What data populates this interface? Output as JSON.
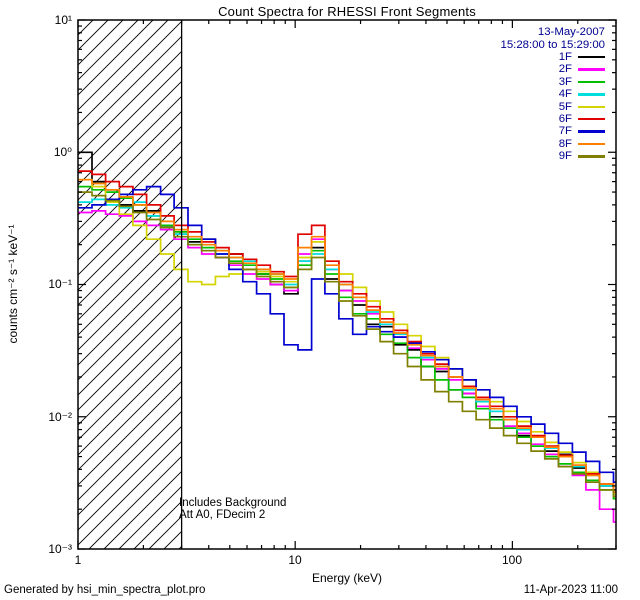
{
  "title": "Count Spectra for RHESSI Front Segments",
  "header": {
    "date": "13-May-2007",
    "time_range": "15:28:00 to 15:29:00"
  },
  "annotations": {
    "line1": "Includes Background",
    "line2": "Att A0, FDecim 2"
  },
  "footer": {
    "left": "Generated by hsi_min_spectra_plot.pro",
    "right": "11-Apr-2023 11:00"
  },
  "axes": {
    "xlabel": "Energy (keV)",
    "ylabel": "counts cm⁻² s⁻¹ keV⁻¹",
    "x_ticks": [
      "1",
      "10",
      "100"
    ],
    "y_ticks": [
      "10¹",
      "10⁰",
      "10⁻¹",
      "10⁻²",
      "10⁻³"
    ]
  },
  "chart_data": {
    "type": "line",
    "title": "Count Spectra for RHESSI Front Segments",
    "xlabel": "Energy (keV)",
    "ylabel": "counts cm^-2 s^-1 keV^-1",
    "xscale": "log",
    "yscale": "log",
    "xlim": [
      1,
      300
    ],
    "ylim": [
      0.001,
      10
    ],
    "grid": false,
    "legend_position": "top-right",
    "step_mode": true,
    "hatched_region_kev": [
      1,
      3
    ],
    "energies_kev": [
      1.0,
      1.16,
      1.34,
      1.55,
      1.79,
      2.07,
      2.4,
      2.77,
      3.21,
      3.71,
      4.29,
      4.96,
      5.74,
      6.64,
      7.68,
      8.88,
      10.3,
      11.9,
      13.7,
      15.9,
      18.4,
      21.3,
      24.6,
      28.4,
      32.9,
      38.0,
      44.0,
      50.9,
      58.9,
      68.1,
      78.7,
      91.1,
      105,
      122,
      141,
      163,
      189,
      218,
      252,
      292
    ],
    "series": [
      {
        "name": "1F",
        "color": "#000000",
        "values": [
          1.0,
          0.6,
          0.52,
          0.4,
          0.36,
          0.36,
          0.28,
          0.24,
          0.21,
          0.22,
          0.16,
          0.17,
          0.13,
          0.12,
          0.1,
          0.085,
          0.15,
          0.19,
          0.11,
          0.09,
          0.07,
          0.05,
          0.048,
          0.035,
          0.032,
          0.024,
          0.022,
          0.016,
          0.015,
          0.013,
          0.01,
          0.0095,
          0.0072,
          0.007,
          0.0055,
          0.0052,
          0.0041,
          0.0038,
          0.003,
          0.0028
        ]
      },
      {
        "name": "2F",
        "color": "#ff00ff",
        "values": [
          0.35,
          0.36,
          0.34,
          0.33,
          0.3,
          0.28,
          0.26,
          0.22,
          0.19,
          0.17,
          0.16,
          0.14,
          0.12,
          0.11,
          0.1,
          0.09,
          0.17,
          0.22,
          0.13,
          0.09,
          0.075,
          0.06,
          0.05,
          0.04,
          0.033,
          0.027,
          0.023,
          0.019,
          0.015,
          0.012,
          0.011,
          0.0085,
          0.0075,
          0.0062,
          0.0052,
          0.0042,
          0.0036,
          0.0028,
          0.002,
          0.0016
        ]
      },
      {
        "name": "3F",
        "color": "#00c000",
        "values": [
          0.55,
          0.52,
          0.5,
          0.45,
          0.4,
          0.33,
          0.28,
          0.25,
          0.22,
          0.19,
          0.18,
          0.15,
          0.14,
          0.12,
          0.11,
          0.095,
          0.14,
          0.18,
          0.12,
          0.08,
          0.06,
          0.055,
          0.042,
          0.036,
          0.028,
          0.024,
          0.019,
          0.016,
          0.014,
          0.0115,
          0.0095,
          0.0082,
          0.007,
          0.006,
          0.005,
          0.0044,
          0.0038,
          0.0033,
          0.0028,
          0.0024
        ]
      },
      {
        "name": "4F",
        "color": "#00dddd",
        "values": [
          0.42,
          0.44,
          0.4,
          0.38,
          0.42,
          0.33,
          0.27,
          0.24,
          0.2,
          0.18,
          0.17,
          0.16,
          0.15,
          0.13,
          0.12,
          0.1,
          0.15,
          0.17,
          0.13,
          0.1,
          0.08,
          0.062,
          0.05,
          0.042,
          0.035,
          0.028,
          0.024,
          0.02,
          0.016,
          0.013,
          0.011,
          0.0095,
          0.008,
          0.007,
          0.0058,
          0.005,
          0.0042,
          0.0036,
          0.003,
          0.0026
        ]
      },
      {
        "name": "5F",
        "color": "#d4d400",
        "values": [
          0.62,
          0.55,
          0.42,
          0.34,
          0.28,
          0.22,
          0.17,
          0.13,
          0.105,
          0.1,
          0.115,
          0.12,
          0.13,
          0.125,
          0.115,
          0.105,
          0.16,
          0.21,
          0.15,
          0.12,
          0.095,
          0.075,
          0.062,
          0.05,
          0.041,
          0.034,
          0.028,
          0.023,
          0.019,
          0.016,
          0.013,
          0.011,
          0.0092,
          0.0077,
          0.0064,
          0.0054,
          0.0045,
          0.0038,
          0.0031,
          0.0026
        ]
      },
      {
        "name": "6F",
        "color": "#e00000",
        "values": [
          0.72,
          0.68,
          0.6,
          0.55,
          0.48,
          0.4,
          0.33,
          0.28,
          0.25,
          0.21,
          0.19,
          0.17,
          0.155,
          0.14,
          0.125,
          0.115,
          0.24,
          0.28,
          0.15,
          0.105,
          0.085,
          0.068,
          0.055,
          0.045,
          0.037,
          0.03,
          0.025,
          0.02,
          0.017,
          0.014,
          0.012,
          0.01,
          0.0085,
          0.0072,
          0.006,
          0.0051,
          0.0043,
          0.0037,
          0.0031,
          0.0027
        ]
      },
      {
        "name": "7F",
        "color": "#0000d0",
        "values": [
          0.38,
          0.4,
          0.44,
          0.48,
          0.52,
          0.55,
          0.48,
          0.38,
          0.28,
          0.22,
          0.17,
          0.13,
          0.105,
          0.085,
          0.06,
          0.035,
          0.032,
          0.11,
          0.085,
          0.055,
          0.042,
          0.048,
          0.044,
          0.04,
          0.036,
          0.031,
          0.027,
          0.023,
          0.019,
          0.016,
          0.014,
          0.012,
          0.01,
          0.0088,
          0.0075,
          0.0063,
          0.0054,
          0.0046,
          0.0038,
          0.0032
        ]
      },
      {
        "name": "8F",
        "color": "#ff8000",
        "values": [
          0.62,
          0.58,
          0.52,
          0.46,
          0.4,
          0.35,
          0.3,
          0.26,
          0.23,
          0.2,
          0.18,
          0.16,
          0.145,
          0.13,
          0.12,
          0.11,
          0.19,
          0.23,
          0.14,
          0.1,
          0.08,
          0.064,
          0.052,
          0.043,
          0.035,
          0.029,
          0.024,
          0.02,
          0.0165,
          0.0135,
          0.0115,
          0.0095,
          0.0082,
          0.007,
          0.0059,
          0.005,
          0.0043,
          0.0036,
          0.0031,
          0.0027
        ]
      },
      {
        "name": "9F",
        "color": "#808000",
        "values": [
          0.5,
          0.47,
          0.43,
          0.39,
          0.35,
          0.31,
          0.27,
          0.23,
          0.2,
          0.18,
          0.16,
          0.145,
          0.13,
          0.115,
          0.105,
          0.095,
          0.13,
          0.16,
          0.105,
          0.075,
          0.058,
          0.046,
          0.037,
          0.03,
          0.024,
          0.019,
          0.0155,
          0.013,
          0.011,
          0.0095,
          0.0082,
          0.0072,
          0.0063,
          0.0055,
          0.0048,
          0.0042,
          0.0037,
          0.0032,
          0.0028,
          0.0025
        ]
      }
    ]
  }
}
